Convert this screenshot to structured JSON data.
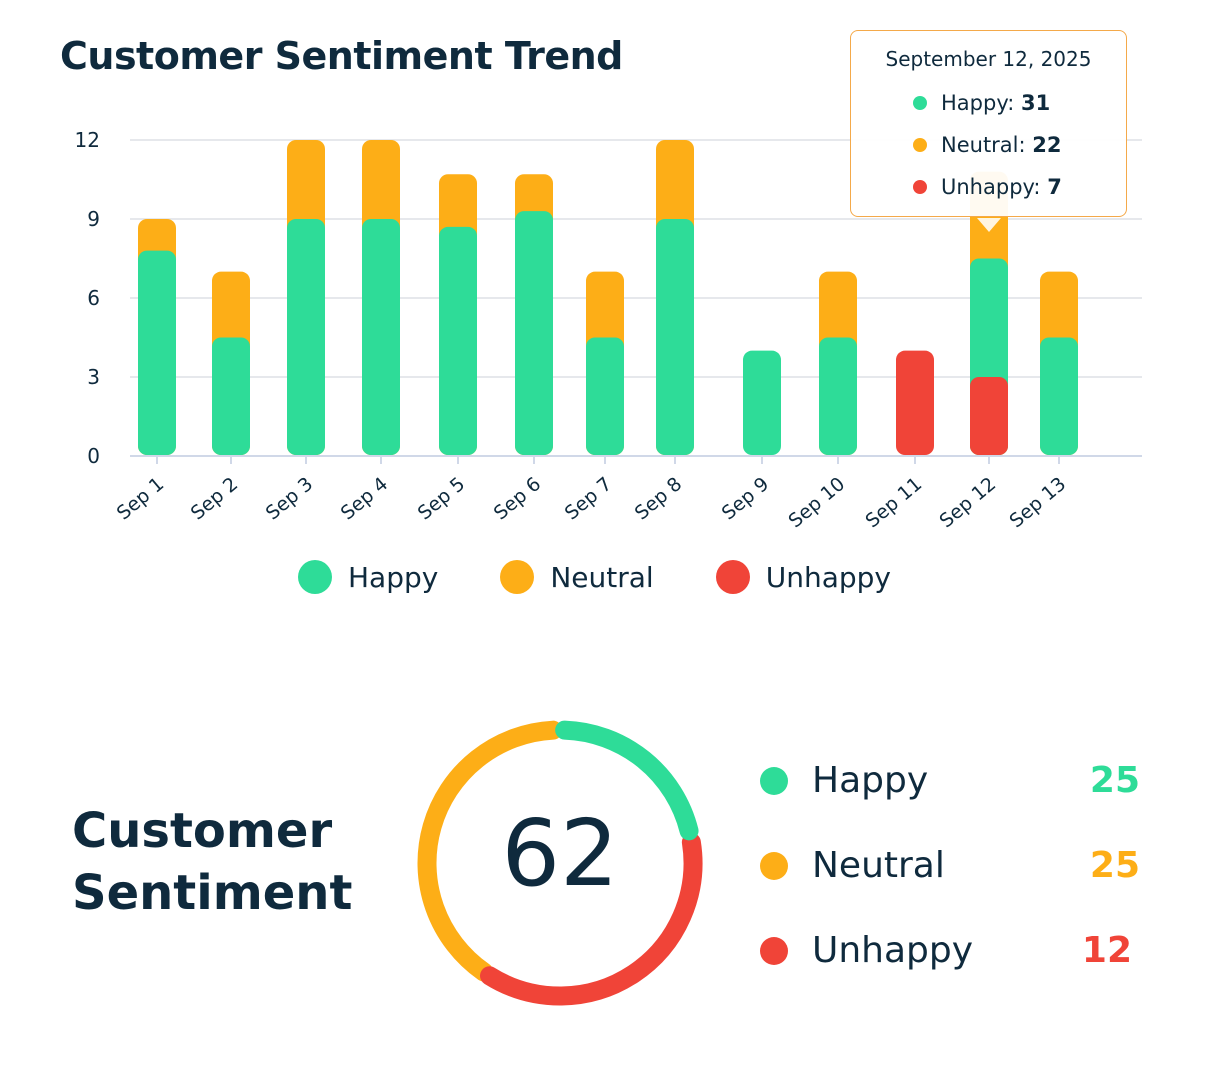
{
  "chart_data": [
    {
      "type": "bar",
      "stacked": true,
      "title": "Customer Sentiment Trend",
      "categories": [
        "Sep 1",
        "Sep 2",
        "Sep 3",
        "Sep 4",
        "Sep 5",
        "Sep 6",
        "Sep 7",
        "Sep 8",
        "Sep 9",
        "Sep 10",
        "Sep 11",
        "Sep 12",
        "Sep 13"
      ],
      "series": [
        {
          "name": "Unhappy",
          "color": "#f04438",
          "values": [
            0,
            0,
            0,
            0,
            0,
            0,
            0,
            0,
            0,
            0,
            4,
            3,
            0
          ]
        },
        {
          "name": "Happy",
          "color": "#2edc98",
          "values": [
            7.8,
            4.5,
            9,
            9,
            8.7,
            9.3,
            4.5,
            9,
            4,
            4.5,
            0,
            4.5,
            4.5
          ]
        },
        {
          "name": "Neutral",
          "color": "#fdae17",
          "values": [
            1.2,
            2.5,
            3,
            3,
            2,
            1.4,
            2.5,
            3,
            0,
            2.5,
            0,
            3.3,
            2.5
          ]
        }
      ],
      "yticks": [
        "0",
        "3",
        "6",
        "9",
        "12"
      ],
      "ylim": [
        0,
        12
      ],
      "grid": true,
      "legend": "bottom",
      "tooltip": {
        "date": "September 12, 2025",
        "rows": [
          {
            "label": "Happy:",
            "value": "31",
            "color": "#2edc98"
          },
          {
            "label": "Neutral:",
            "value": "22",
            "color": "#fdae17"
          },
          {
            "label": "Unhappy:",
            "value": "7",
            "color": "#f04438"
          }
        ]
      }
    },
    {
      "type": "pie",
      "title": "Customer Sentiment",
      "total": "62",
      "slices": [
        {
          "name": "Happy",
          "value": 25,
          "color": "#2edc98"
        },
        {
          "name": "Neutral",
          "value": 25,
          "color": "#fdae17"
        },
        {
          "name": "Unhappy",
          "value": 12,
          "color": "#f04438"
        }
      ]
    }
  ]
}
